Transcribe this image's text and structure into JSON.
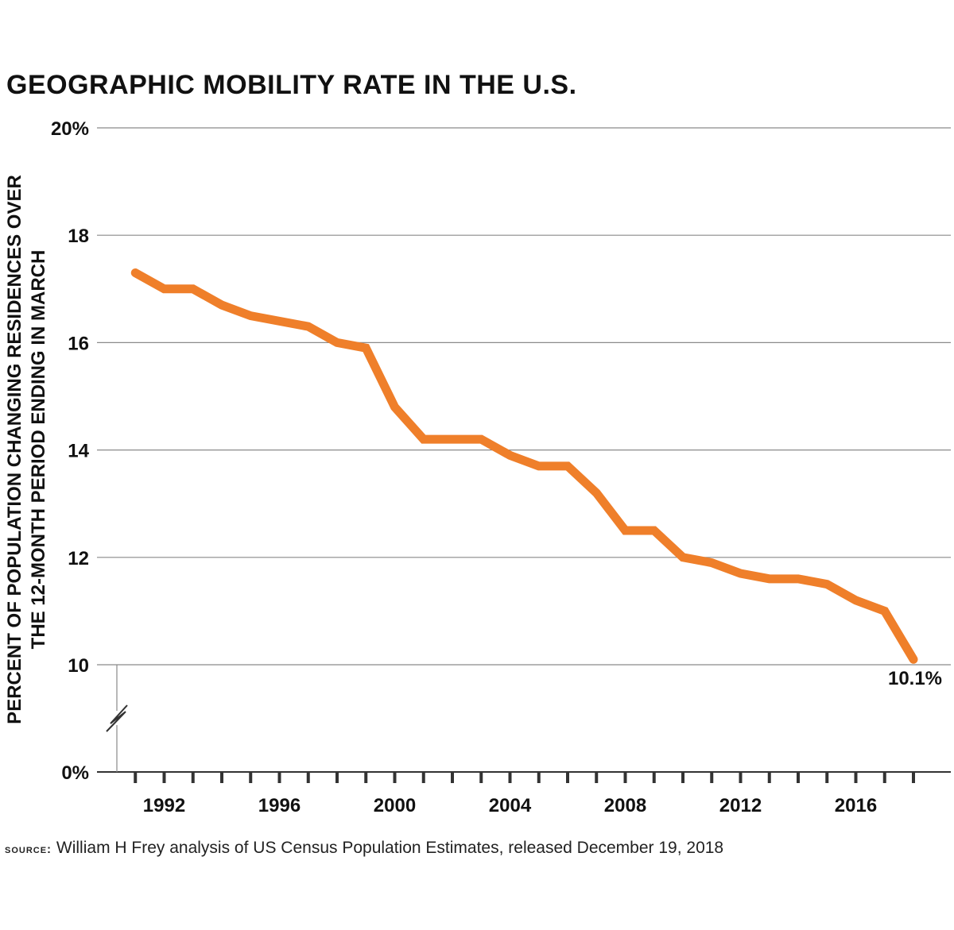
{
  "title": "GEOGRAPHIC MOBILITY RATE IN THE U.S.",
  "source": {
    "label": "source:",
    "text": "William H Frey analysis of US Census Population Estimates, released December 19, 2018"
  },
  "colors": {
    "line": "#ef7f2a",
    "grid": "#8a8a8a",
    "axis": "#333333",
    "text": "#111111"
  },
  "chart_data": {
    "type": "line",
    "title": "GEOGRAPHIC MOBILITY RATE IN THE U.S.",
    "xlabel": "",
    "ylabel_lines": [
      "PERCENT OF POPULATION CHANGING RESIDENCES OVER",
      "THE 12-MONTH PERIOD ENDING IN MARCH"
    ],
    "ylim": [
      10,
      20
    ],
    "y_axis_break": true,
    "yticks": [
      {
        "value": 20,
        "label": "20%"
      },
      {
        "value": 18,
        "label": "18"
      },
      {
        "value": 16,
        "label": "16"
      },
      {
        "value": 14,
        "label": "14"
      },
      {
        "value": 12,
        "label": "12"
      },
      {
        "value": 10,
        "label": "10"
      },
      {
        "value": 0,
        "label": "0%"
      }
    ],
    "xlim": [
      1990,
      2019
    ],
    "xticks": [
      {
        "value": 1992,
        "label": "1992"
      },
      {
        "value": 1996,
        "label": "1996"
      },
      {
        "value": 2000,
        "label": "2000"
      },
      {
        "value": 2004,
        "label": "2004"
      },
      {
        "value": 2008,
        "label": "2008"
      },
      {
        "value": 2012,
        "label": "2012"
      },
      {
        "value": 2016,
        "label": "2016"
      }
    ],
    "series": [
      {
        "name": "Geographic mobility rate",
        "x": [
          1991,
          1992,
          1993,
          1994,
          1995,
          1996,
          1997,
          1998,
          1999,
          2000,
          2001,
          2002,
          2003,
          2004,
          2005,
          2006,
          2007,
          2008,
          2009,
          2010,
          2011,
          2012,
          2013,
          2014,
          2015,
          2016,
          2017,
          2018
        ],
        "values": [
          17.3,
          17.0,
          17.0,
          16.7,
          16.5,
          16.4,
          16.3,
          16.0,
          15.9,
          14.8,
          14.2,
          14.2,
          14.2,
          13.9,
          13.7,
          13.7,
          13.2,
          12.5,
          12.5,
          12.0,
          11.9,
          11.7,
          11.6,
          11.6,
          11.5,
          11.2,
          11.0,
          10.1
        ]
      }
    ],
    "annotations": [
      {
        "x": 2018,
        "y": 10.1,
        "label": "10.1%"
      }
    ]
  }
}
